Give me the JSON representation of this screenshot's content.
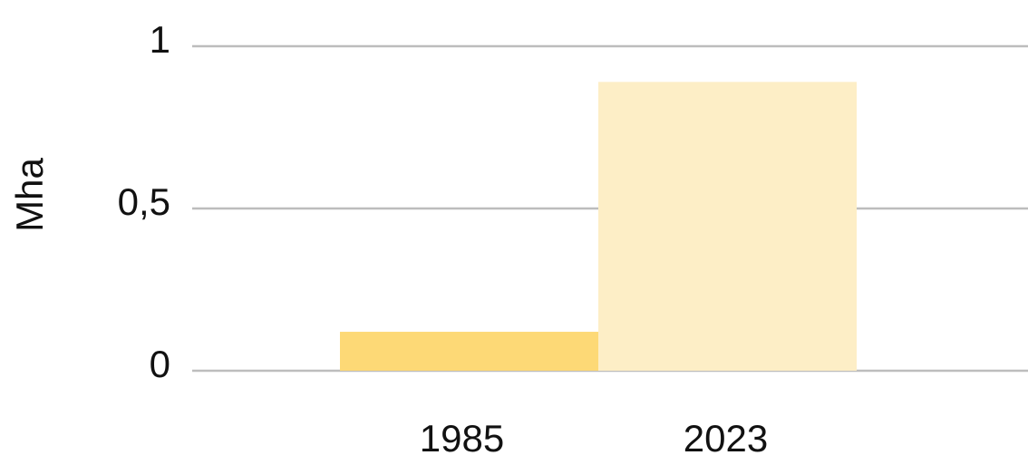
{
  "chart_data": {
    "type": "bar",
    "y_label": "Mha",
    "categories": [
      "1985",
      "2023"
    ],
    "values": [
      0.12,
      0.89
    ],
    "colors": [
      "#fdd976",
      "#fdeec6"
    ],
    "ylim": [
      0,
      1
    ],
    "yticks": [
      0,
      {
        "value": 0.5,
        "label": "0,5"
      },
      1
    ],
    "grid": true
  }
}
